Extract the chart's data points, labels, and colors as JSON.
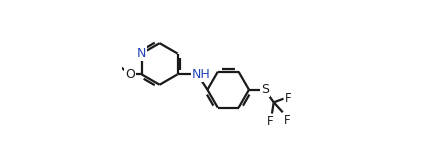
{
  "bg_color": "#ffffff",
  "line_color": "#1a1a1a",
  "n_color": "#2244bb",
  "bond_lw": 1.6,
  "dbo": 0.012,
  "figsize": [
    4.24,
    1.55
  ],
  "dpi": 100,
  "xlim": [
    0.0,
    1.0
  ],
  "ylim": [
    0.1,
    0.95
  ]
}
